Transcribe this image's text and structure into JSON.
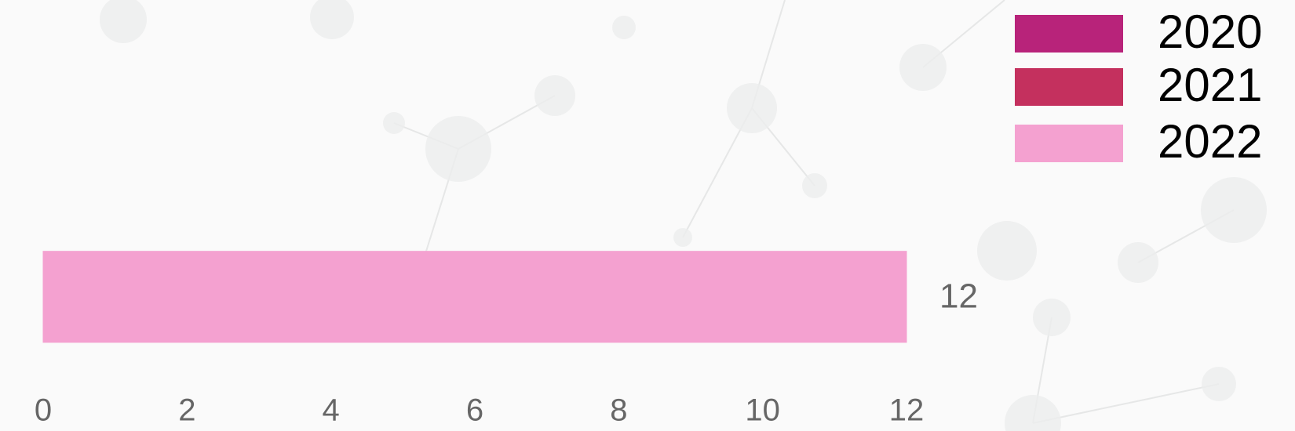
{
  "chart_data": {
    "type": "hbar",
    "categories": [
      null
    ],
    "series": [
      {
        "name": "2020",
        "color": "#b8237a",
        "values": [
          0
        ]
      },
      {
        "name": "2021",
        "color": "#c4305e",
        "values": [
          0
        ]
      },
      {
        "name": "2022",
        "color": "#f4a1d0",
        "values": [
          12
        ]
      }
    ],
    "xlim": [
      0,
      12
    ],
    "xticks": [
      0,
      2,
      4,
      6,
      8,
      10,
      12
    ],
    "legend": "top-right"
  }
}
